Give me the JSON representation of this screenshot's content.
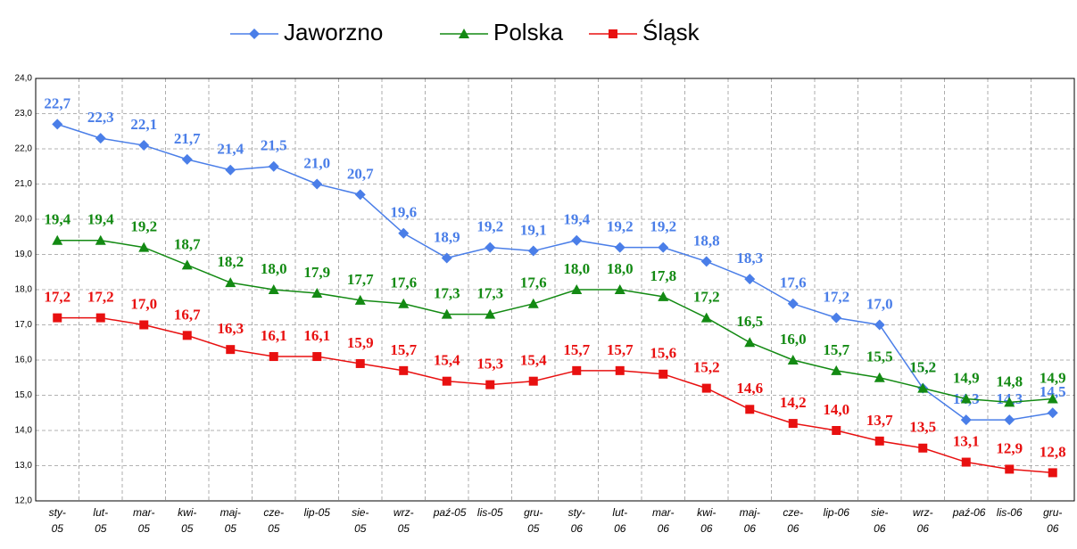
{
  "chart_data": {
    "type": "line",
    "categories": [
      "sty-05",
      "lut-05",
      "mar-05",
      "kwi-05",
      "maj-05",
      "cze-05",
      "lip-05",
      "sie-05",
      "wrz-05",
      "paź-05",
      "lis-05",
      "gru-05",
      "sty-06",
      "lut-06",
      "mar-06",
      "kwi-06",
      "maj-06",
      "cze-06",
      "lip-06",
      "sie-06",
      "wrz-06",
      "paź-06",
      "lis-06",
      "gru-06"
    ],
    "series": [
      {
        "name": "Jaworzno",
        "color": "#4a7ee8",
        "marker": "diamond",
        "values": [
          22.7,
          22.3,
          22.1,
          21.7,
          21.4,
          21.5,
          21.0,
          20.7,
          19.6,
          18.9,
          19.2,
          19.1,
          19.4,
          19.2,
          19.2,
          18.8,
          18.3,
          17.6,
          17.2,
          17.0,
          15.2,
          14.3,
          14.3,
          14.5
        ],
        "value_labels": [
          "22,7",
          "22,3",
          "22,1",
          "21,7",
          "21,4",
          "21,5",
          "21,0",
          "20,7",
          "19,6",
          "18,9",
          "19,2",
          "19,1",
          "19,4",
          "19,2",
          "19,2",
          "18,8",
          "18,3",
          "17,6",
          "17,2",
          "17,0",
          "15,2",
          "14,3",
          "14,3",
          "14,5"
        ]
      },
      {
        "name": "Polska",
        "color": "#138a13",
        "marker": "triangle",
        "values": [
          19.4,
          19.4,
          19.2,
          18.7,
          18.2,
          18.0,
          17.9,
          17.7,
          17.6,
          17.3,
          17.3,
          17.6,
          18.0,
          18.0,
          17.8,
          17.2,
          16.5,
          16.0,
          15.7,
          15.5,
          15.2,
          14.9,
          14.8,
          14.9
        ],
        "value_labels": [
          "19,4",
          "19,4",
          "19,2",
          "18,7",
          "18,2",
          "18,0",
          "17,9",
          "17,7",
          "17,6",
          "17,3",
          "17,3",
          "17,6",
          "18,0",
          "18,0",
          "17,8",
          "17,2",
          "16,5",
          "16,0",
          "15,7",
          "15,5",
          "15,2",
          "14,9",
          "14,8",
          "14,9"
        ]
      },
      {
        "name": "Śląsk",
        "color": "#e81010",
        "marker": "square",
        "values": [
          17.2,
          17.2,
          17.0,
          16.7,
          16.3,
          16.1,
          16.1,
          15.9,
          15.7,
          15.4,
          15.3,
          15.4,
          15.7,
          15.7,
          15.6,
          15.2,
          14.6,
          14.2,
          14.0,
          13.7,
          13.5,
          13.1,
          12.9,
          12.8
        ],
        "value_labels": [
          "17,2",
          "17,2",
          "17,0",
          "16,7",
          "16,3",
          "16,1",
          "16,1",
          "15,9",
          "15,7",
          "15,4",
          "15,3",
          "15,4",
          "15,7",
          "15,7",
          "15,6",
          "15,2",
          "14,6",
          "14,2",
          "14,0",
          "13,7",
          "13,5",
          "13,1",
          "12,9",
          "12,8"
        ]
      }
    ],
    "ylim": [
      12,
      24
    ],
    "yticks": [
      {
        "value": 12,
        "label": "12,0"
      },
      {
        "value": 13,
        "label": "13,0"
      },
      {
        "value": 14,
        "label": "14,0"
      },
      {
        "value": 15,
        "label": "15,0"
      },
      {
        "value": 16,
        "label": "16,0"
      },
      {
        "value": 17,
        "label": "17,0"
      },
      {
        "value": 18,
        "label": "18,0"
      },
      {
        "value": 19,
        "label": "19,0"
      },
      {
        "value": 20,
        "label": "20,0"
      },
      {
        "value": 21,
        "label": "21,0"
      },
      {
        "value": 22,
        "label": "22,0"
      },
      {
        "value": 23,
        "label": "23,0"
      },
      {
        "value": 24,
        "label": "24,0"
      }
    ],
    "grid": true,
    "legend": "top"
  }
}
